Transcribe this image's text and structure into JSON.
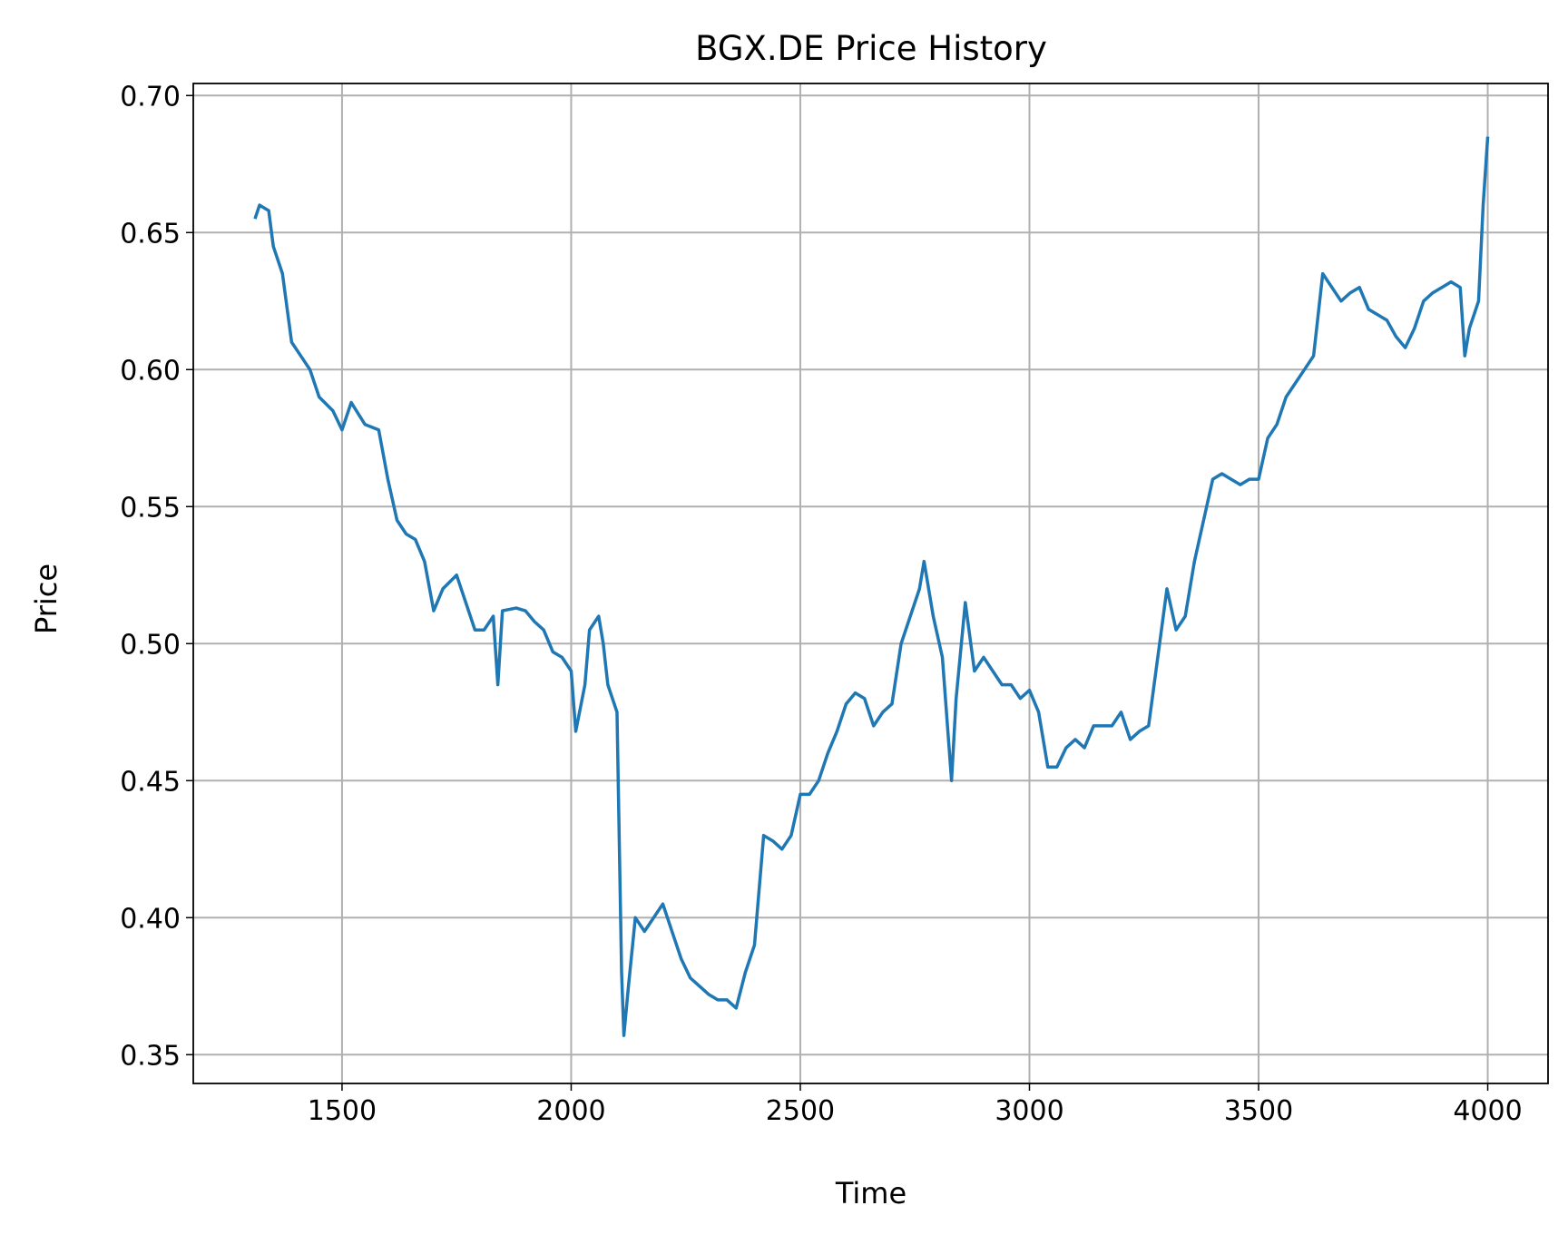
{
  "chart_data": {
    "type": "line",
    "title": "BGX.DE Price History",
    "x_label": "Time",
    "y_label": "Price",
    "color": "#1f77b4",
    "grid": true,
    "xlim": [
      1175.4,
      4131.6
    ],
    "ylim": [
      0.3395,
      0.7044
    ],
    "xticks": [
      1500,
      2000,
      2500,
      3000,
      3500,
      4000
    ],
    "yticks": [
      0.35,
      {
        "value": 0.4,
        "label": "0.40"
      },
      0.45,
      {
        "value": 0.5,
        "label": "0.50"
      },
      0.55,
      {
        "value": 0.6,
        "label": "0.60"
      },
      0.65,
      {
        "value": 0.7,
        "label": "0.70"
      }
    ],
    "x": [
      1310,
      1320,
      1340,
      1350,
      1370,
      1390,
      1410,
      1430,
      1450,
      1480,
      1500,
      1520,
      1550,
      1580,
      1600,
      1620,
      1640,
      1660,
      1680,
      1700,
      1720,
      1750,
      1770,
      1790,
      1810,
      1830,
      1840,
      1850,
      1880,
      1900,
      1920,
      1940,
      1960,
      1980,
      2000,
      2010,
      2030,
      2040,
      2060,
      2070,
      2080,
      2100,
      2110,
      2115,
      2125,
      2140,
      2160,
      2180,
      2200,
      2220,
      2240,
      2260,
      2280,
      2300,
      2320,
      2340,
      2360,
      2380,
      2400,
      2420,
      2440,
      2460,
      2480,
      2500,
      2520,
      2540,
      2560,
      2580,
      2600,
      2620,
      2640,
      2660,
      2680,
      2700,
      2720,
      2740,
      2760,
      2770,
      2790,
      2810,
      2830,
      2840,
      2860,
      2880,
      2900,
      2920,
      2940,
      2960,
      2980,
      3000,
      3020,
      3040,
      3060,
      3080,
      3100,
      3120,
      3140,
      3160,
      3180,
      3200,
      3220,
      3240,
      3260,
      3280,
      3300,
      3320,
      3340,
      3360,
      3380,
      3400,
      3420,
      3440,
      3460,
      3480,
      3500,
      3520,
      3540,
      3560,
      3580,
      3600,
      3620,
      3640,
      3660,
      3680,
      3700,
      3720,
      3740,
      3760,
      3780,
      3800,
      3820,
      3840,
      3860,
      3880,
      3900,
      3920,
      3940,
      3950,
      3960,
      3980,
      3990,
      4000
    ],
    "series": [
      {
        "name": "Price",
        "color": "#1f77b4",
        "values": [
          0.655,
          0.66,
          0.658,
          0.645,
          0.635,
          0.61,
          0.605,
          0.6,
          0.59,
          0.585,
          0.578,
          0.588,
          0.58,
          0.578,
          0.56,
          0.545,
          0.54,
          0.538,
          0.53,
          0.512,
          0.52,
          0.525,
          0.515,
          0.505,
          0.505,
          0.51,
          0.485,
          0.512,
          0.513,
          0.512,
          0.508,
          0.505,
          0.497,
          0.495,
          0.49,
          0.468,
          0.485,
          0.505,
          0.51,
          0.5,
          0.485,
          0.475,
          0.38,
          0.357,
          0.375,
          0.4,
          0.395,
          0.4,
          0.405,
          0.395,
          0.385,
          0.378,
          0.375,
          0.372,
          0.37,
          0.37,
          0.367,
          0.38,
          0.39,
          0.43,
          0.428,
          0.425,
          0.43,
          0.445,
          0.445,
          0.45,
          0.46,
          0.468,
          0.478,
          0.482,
          0.48,
          0.47,
          0.475,
          0.478,
          0.5,
          0.51,
          0.52,
          0.53,
          0.51,
          0.495,
          0.45,
          0.48,
          0.515,
          0.49,
          0.495,
          0.49,
          0.485,
          0.485,
          0.48,
          0.483,
          0.475,
          0.455,
          0.455,
          0.462,
          0.465,
          0.462,
          0.47,
          0.47,
          0.47,
          0.475,
          0.465,
          0.468,
          0.47,
          0.495,
          0.52,
          0.505,
          0.51,
          0.53,
          0.545,
          0.56,
          0.562,
          0.56,
          0.558,
          0.56,
          0.56,
          0.575,
          0.58,
          0.59,
          0.595,
          0.6,
          0.605,
          0.635,
          0.63,
          0.625,
          0.628,
          0.63,
          0.622,
          0.62,
          0.618,
          0.612,
          0.608,
          0.615,
          0.625,
          0.628,
          0.63,
          0.632,
          0.63,
          0.605,
          0.615,
          0.625,
          0.66,
          0.685
        ]
      }
    ]
  }
}
